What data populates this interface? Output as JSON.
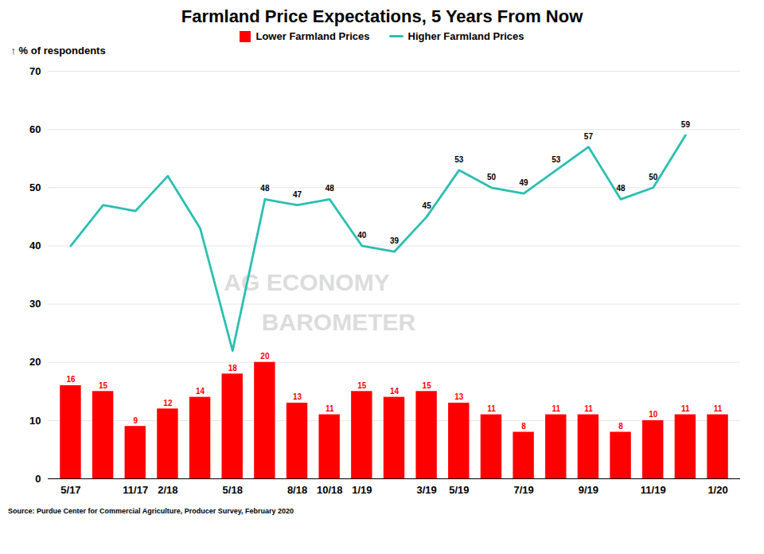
{
  "chart_data": {
    "type": "bar",
    "title": "Farmland Price Expectations, 5 Years From Now",
    "ylabel": "% of respondents",
    "caption": "Source: Purdue Center for Commercial Agriculture, Producer Survey, February 2020",
    "annotations": [
      "AG ECONOMY",
      "BAROMETER"
    ],
    "categories": [
      "5/17",
      null,
      "11/17",
      "2/18",
      null,
      "5/18",
      null,
      "8/18",
      "10/18",
      "1/19",
      null,
      "3/19",
      "5/19",
      null,
      "7/19",
      null,
      "9/19",
      null,
      "11/19",
      null,
      "1/20"
    ],
    "series": [
      {
        "name": "Lower Farmland Prices",
        "type": "bar",
        "color": "#FF0000",
        "values": [
          16,
          15,
          9,
          12,
          14,
          18,
          20,
          13,
          11,
          15,
          14,
          15,
          13,
          11,
          8,
          11,
          11,
          8,
          10,
          11,
          11
        ],
        "data_labels": true
      },
      {
        "name": "Higher Farmland Prices",
        "type": "line",
        "color": "#2BBFB0",
        "values": [
          40,
          47,
          46,
          52,
          43,
          22,
          48,
          47,
          48,
          40,
          39,
          45,
          53,
          50,
          49,
          53,
          57,
          48,
          50,
          59,
          null
        ],
        "value_labels": [
          null,
          null,
          null,
          null,
          null,
          null,
          "48",
          "47",
          "48",
          "40",
          "39",
          "45",
          "53",
          "50",
          "49",
          "53",
          "57",
          "48",
          "50",
          "59",
          null
        ]
      }
    ],
    "ylim": [
      0,
      70
    ],
    "yticks": [
      0,
      10,
      20,
      30,
      40,
      50,
      60,
      70
    ],
    "grid": true,
    "legend": "top"
  }
}
